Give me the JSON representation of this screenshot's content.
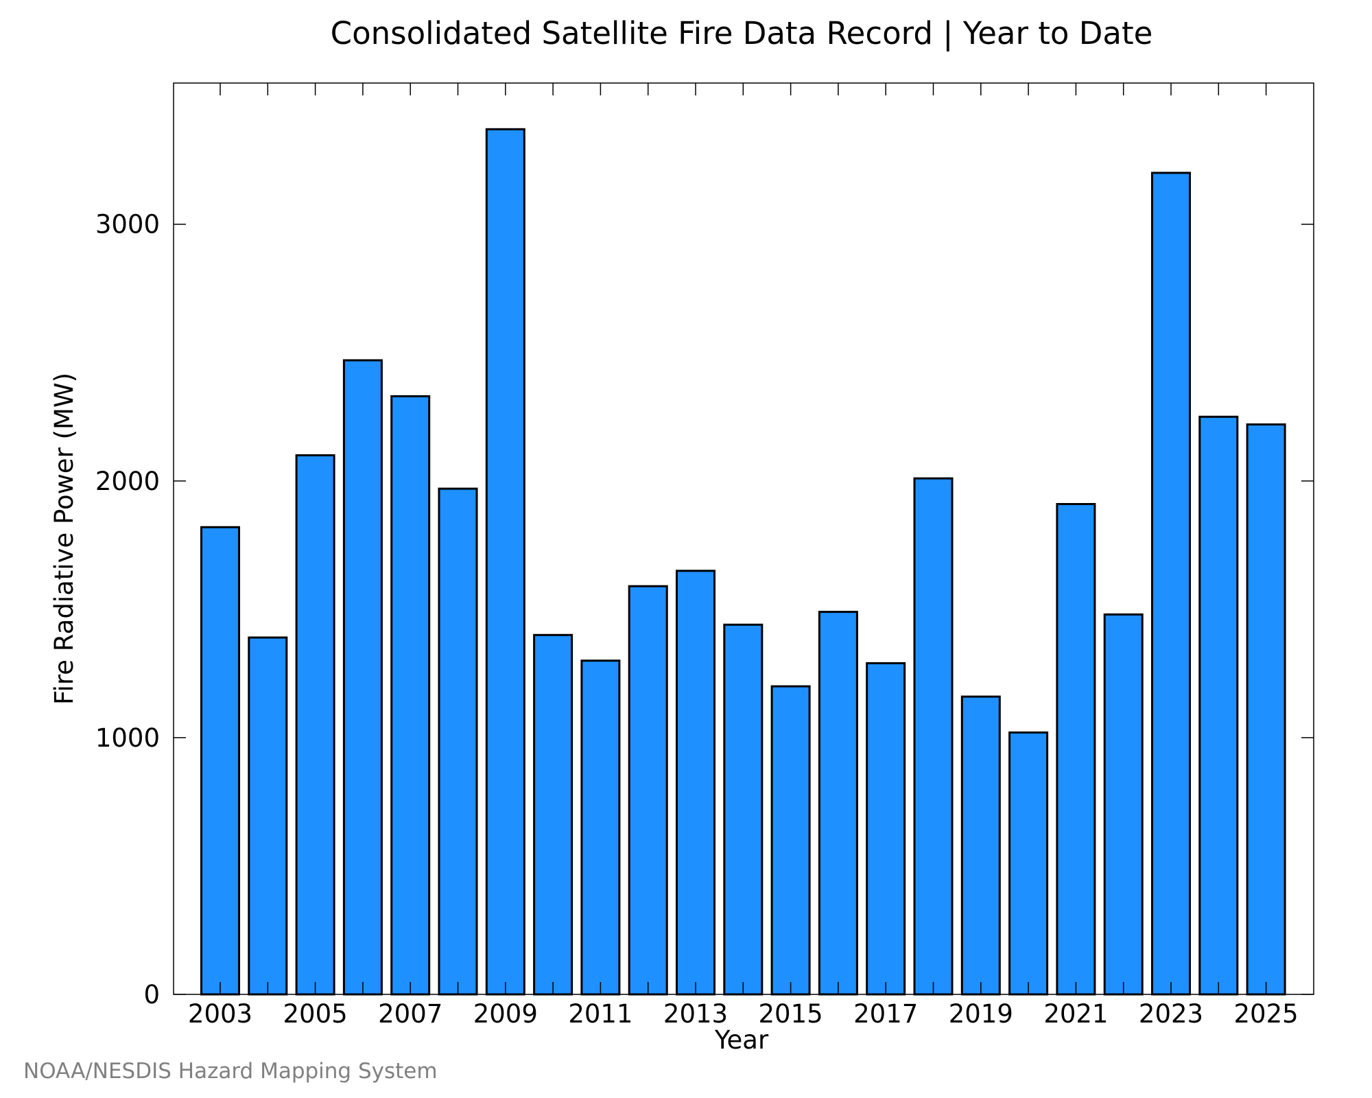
{
  "chart_data": {
    "type": "bar",
    "title": "Consolidated Satellite Fire Data Record | Year to Date",
    "xlabel": "Year",
    "ylabel": "Fire Radiative Power (MW)",
    "categories": [
      2003,
      2004,
      2005,
      2006,
      2007,
      2008,
      2009,
      2010,
      2011,
      2012,
      2013,
      2014,
      2015,
      2016,
      2017,
      2018,
      2019,
      2020,
      2021,
      2022,
      2023,
      2024,
      2025
    ],
    "values": [
      1820,
      1390,
      2100,
      2470,
      2330,
      1970,
      3370,
      1400,
      1300,
      1590,
      1650,
      1440,
      1200,
      1490,
      1290,
      2010,
      1160,
      1020,
      1910,
      1480,
      3200,
      2250,
      2220
    ],
    "ylim": [
      0,
      3550
    ],
    "yticks": [
      0,
      1000,
      2000,
      3000
    ],
    "xtick_labels": [
      2003,
      2005,
      2007,
      2009,
      2011,
      2013,
      2015,
      2017,
      2019,
      2021,
      2023,
      2025
    ],
    "grid": false,
    "legend": "none",
    "colors": {
      "bar_fill": "#1e90ff",
      "bar_edge": "#000000"
    }
  },
  "footer": {
    "credit": "NOAA/NESDIS Hazard Mapping System"
  }
}
